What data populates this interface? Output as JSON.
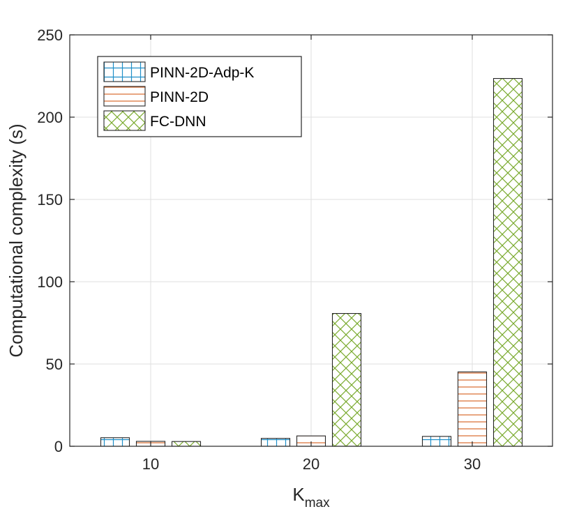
{
  "chart_data": {
    "type": "bar",
    "xlabel": "K",
    "xlabel_sub": "max",
    "ylabel": "Computational complexity (s)",
    "categories": [
      "10",
      "20",
      "30"
    ],
    "ylim": [
      0,
      250
    ],
    "yticks": [
      0,
      50,
      100,
      150,
      200,
      250
    ],
    "grid": true,
    "legend_position": "top-left",
    "series": [
      {
        "name": "PINN-2D-Adp-K",
        "values": [
          5.2,
          4.8,
          6.0
        ],
        "color": "#1f8fc8",
        "hatch": "grid"
      },
      {
        "name": "PINN-2D",
        "values": [
          3.0,
          6.3,
          45.2
        ],
        "color": "#d9692c",
        "hatch": "horizontal"
      },
      {
        "name": "FC-DNN",
        "values": [
          2.9,
          80.7,
          223.5
        ],
        "color": "#7aaa2e",
        "hatch": "crosshatch"
      }
    ]
  }
}
